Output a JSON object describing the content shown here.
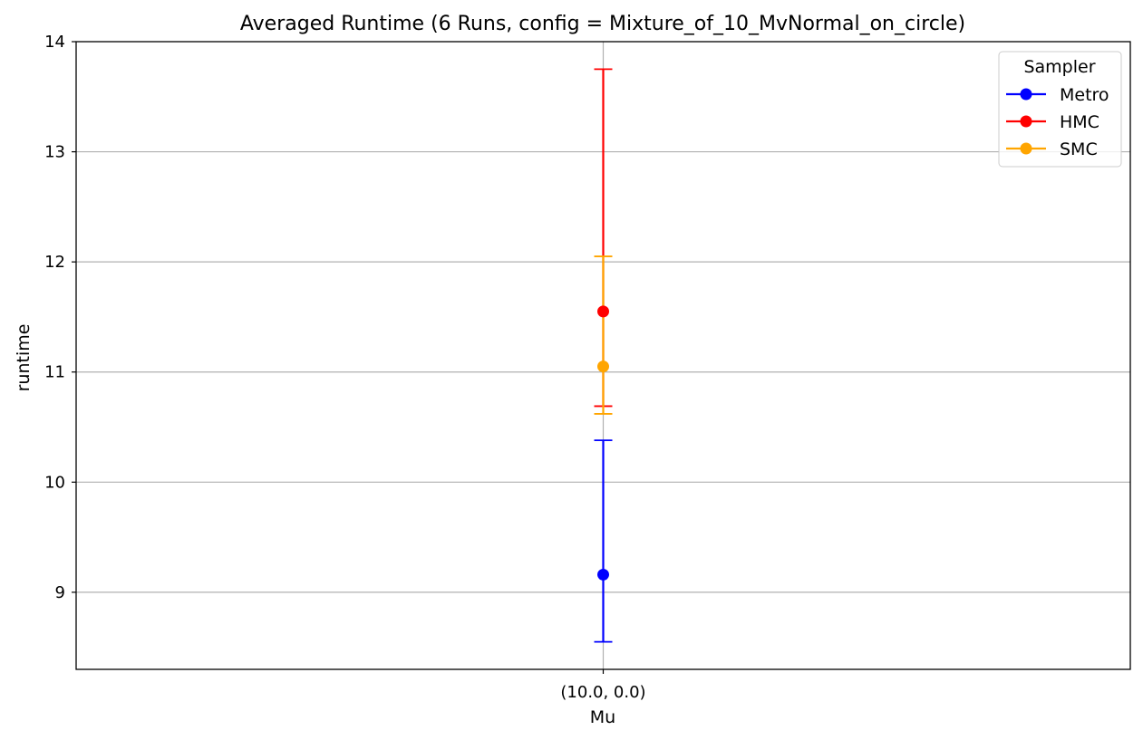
{
  "chart_data": {
    "type": "errorbar",
    "title": "Averaged Runtime (6 Runs, config = Mixture_of_10_MvNormal_on_circle)",
    "xlabel": "Mu",
    "ylabel": "runtime",
    "categories": [
      "(10.0, 0.0)"
    ],
    "yticks": [
      9,
      10,
      11,
      12,
      13,
      14
    ],
    "ylim": [
      8.3,
      14.0
    ],
    "grid": true,
    "legend": {
      "title": "Sampler",
      "position": "top-right"
    },
    "series": [
      {
        "name": "Metro",
        "color": "#0000ff",
        "mean": 9.16,
        "lower": 8.55,
        "upper": 10.38
      },
      {
        "name": "HMC",
        "color": "#ff0000",
        "mean": 11.55,
        "lower": 10.69,
        "upper": 13.75
      },
      {
        "name": "SMC",
        "color": "#ffa500",
        "mean": 11.05,
        "lower": 10.62,
        "upper": 12.05
      }
    ]
  }
}
